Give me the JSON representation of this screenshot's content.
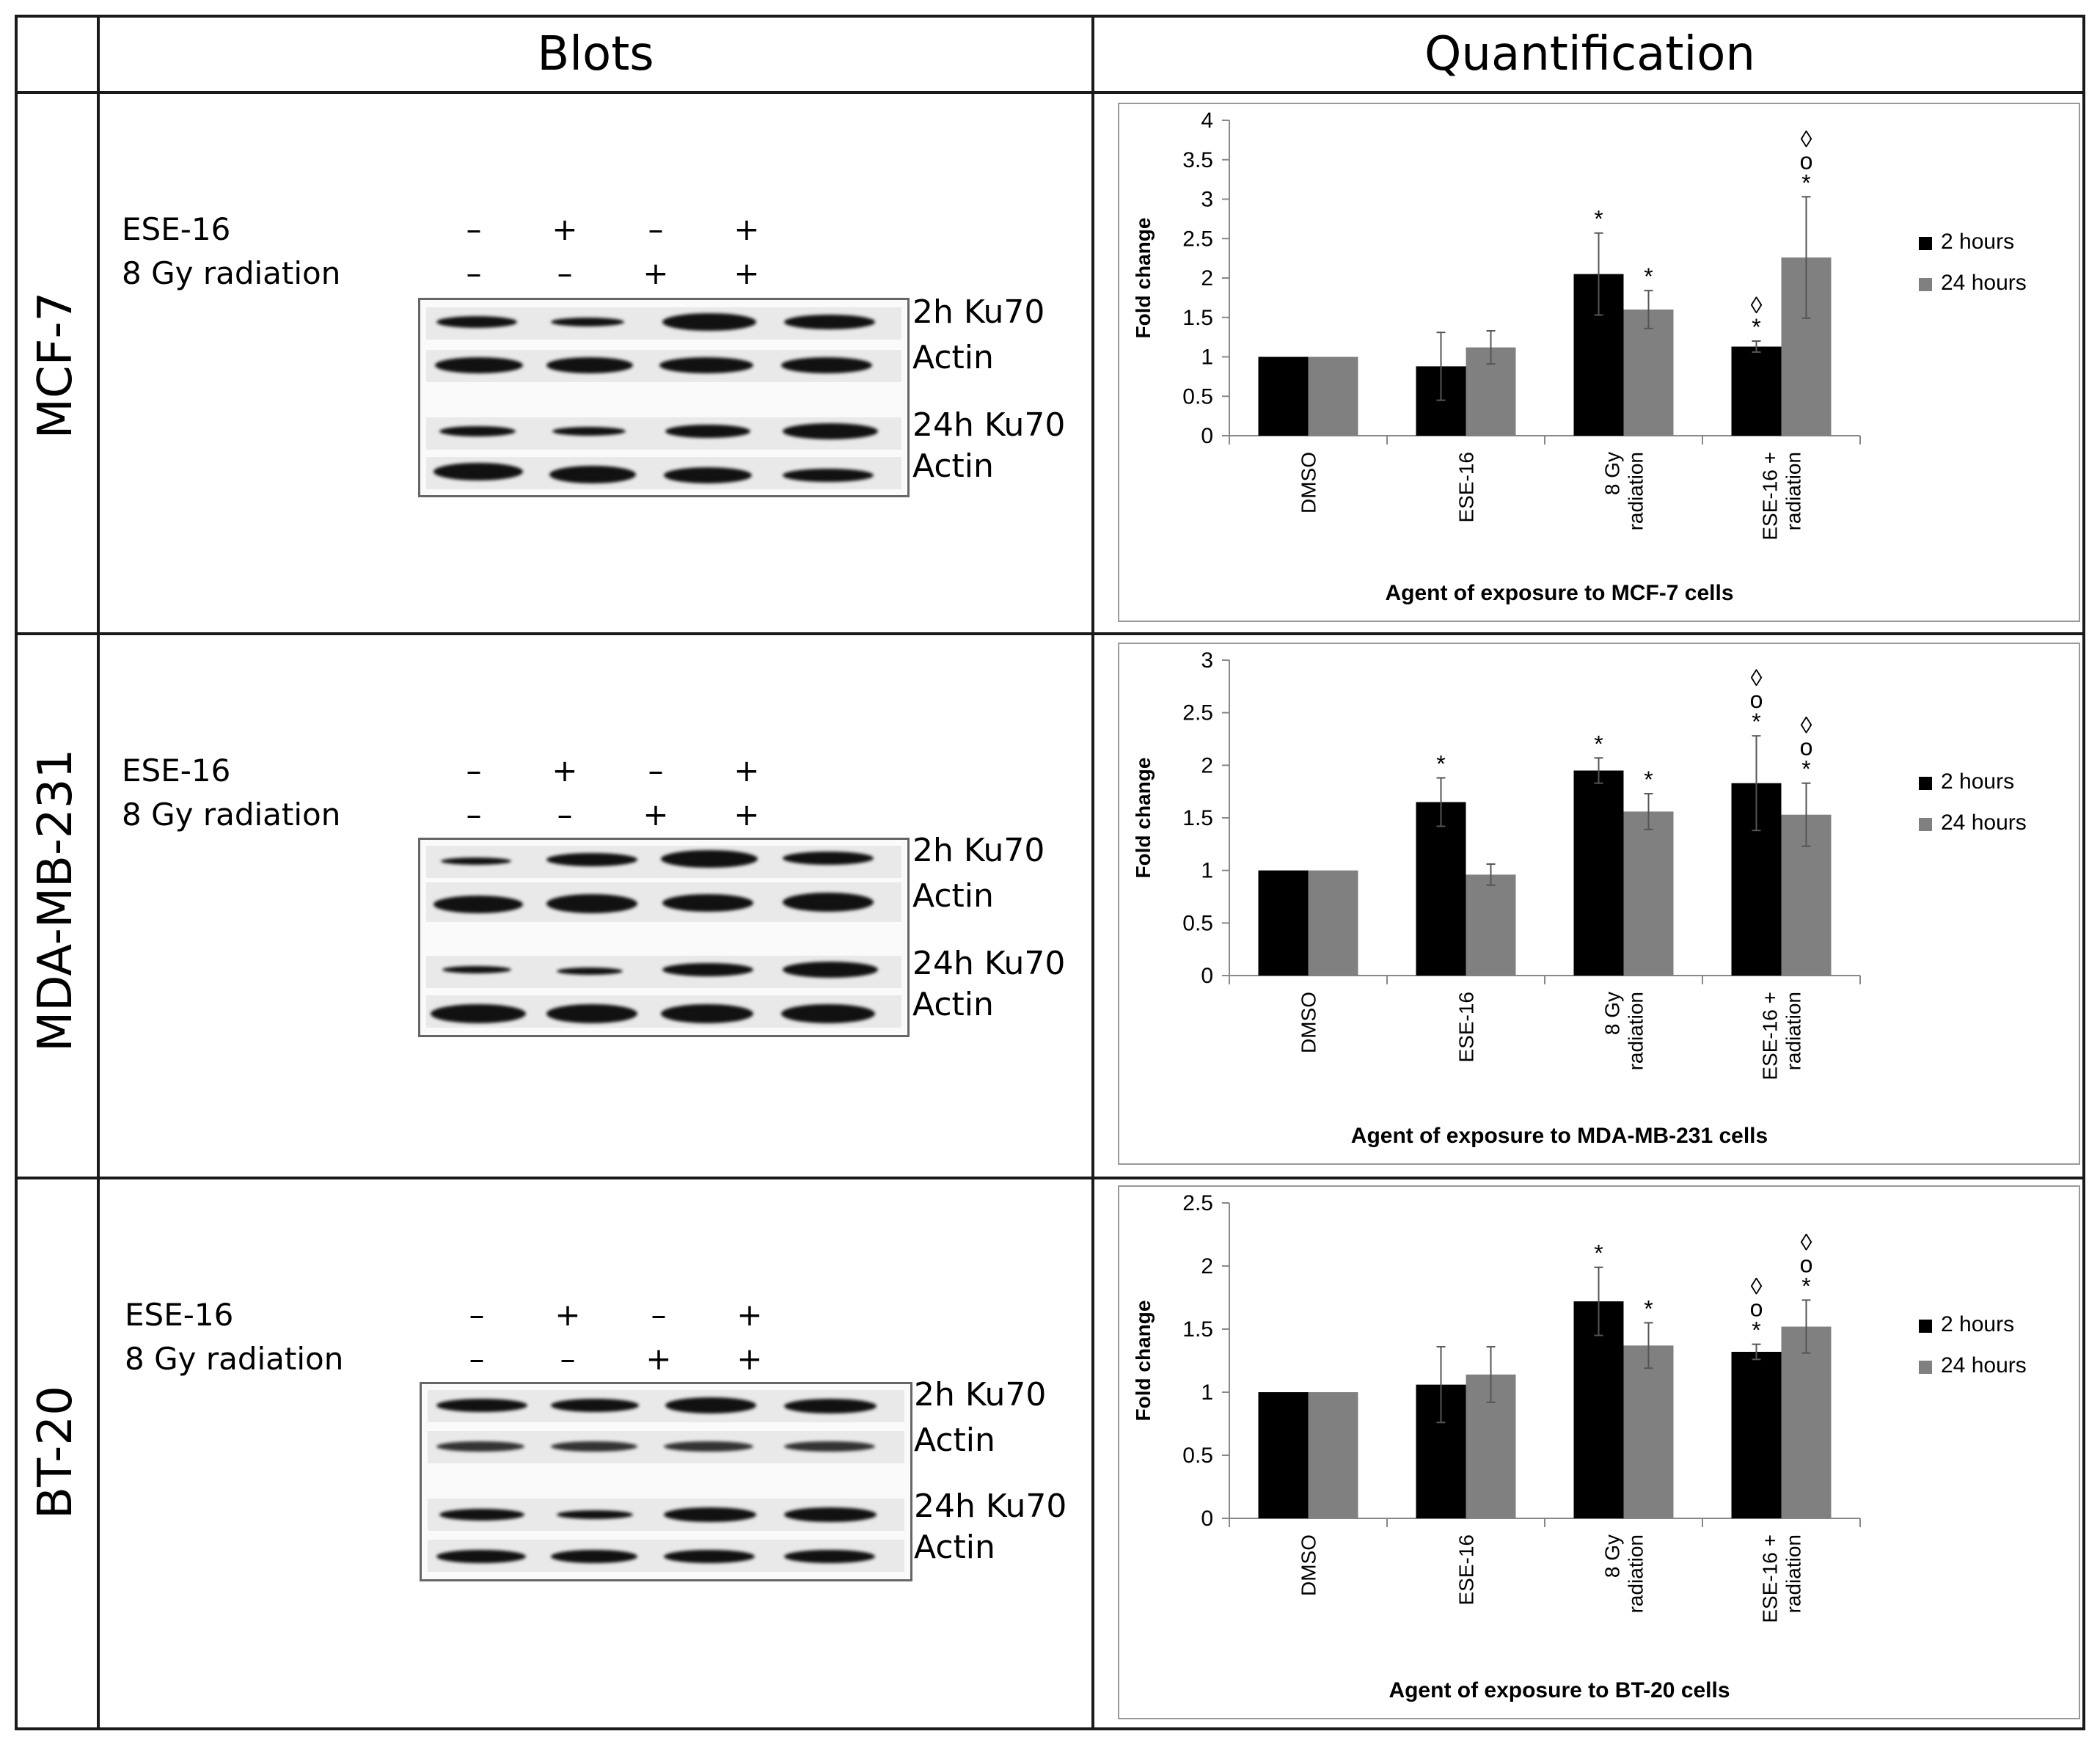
{
  "headers": {
    "blots": "Blots",
    "quantification": "Quantification"
  },
  "rows": [
    {
      "cell_line": "MCF-7",
      "blots": {
        "treatments": [
          {
            "label": "ESE-16",
            "signs": [
              "–",
              "+",
              "–",
              "+"
            ]
          },
          {
            "label": "8 Gy radiation",
            "signs": [
              "–",
              "–",
              "+",
              "+"
            ]
          }
        ],
        "band_labels": [
          "2h Ku70",
          "Actin",
          "24h Ku70",
          "Actin"
        ]
      }
    },
    {
      "cell_line": "MDA-MB-231",
      "blots": {
        "treatments": [
          {
            "label": "ESE-16",
            "signs": [
              "–",
              "+",
              "–",
              "+"
            ]
          },
          {
            "label": "8 Gy radiation",
            "signs": [
              "–",
              "–",
              "+",
              "+"
            ]
          }
        ],
        "band_labels": [
          "2h Ku70",
          "Actin",
          "24h Ku70",
          "Actin"
        ]
      }
    },
    {
      "cell_line": "BT-20",
      "blots": {
        "treatments": [
          {
            "label": "ESE-16",
            "signs": [
              "–",
              "+",
              "–",
              "+"
            ]
          },
          {
            "label": "8 Gy radiation",
            "signs": [
              "–",
              "–",
              "+",
              "+"
            ]
          }
        ],
        "band_labels": [
          "2h Ku70",
          "Actin",
          "24h Ku70",
          "Actin"
        ]
      }
    }
  ],
  "chart_data": [
    {
      "type": "bar",
      "title": "",
      "ylabel": "Fold change",
      "xlabel": "Agent of exposure to MCF-7 cells",
      "categories": [
        "DMSO",
        "ESE-16",
        "8 Gy radiation",
        "ESE-16 + radiation"
      ],
      "ylim": [
        0,
        4
      ],
      "yticks": [
        "0",
        "0.5",
        "1",
        "1.5",
        "2",
        "2.5",
        "3",
        "3.5",
        "4"
      ],
      "legend_position": "right",
      "series": [
        {
          "name": "2 hours",
          "color": "#000000",
          "values": [
            1.0,
            0.88,
            2.05,
            1.13
          ],
          "errors": [
            0.0,
            0.43,
            0.52,
            0.07
          ],
          "annotations": [
            "",
            "",
            "*",
            "*◊"
          ]
        },
        {
          "name": "24 hours",
          "color": "#808080",
          "values": [
            1.0,
            1.12,
            1.6,
            2.26
          ],
          "errors": [
            0.0,
            0.21,
            0.24,
            0.77
          ],
          "annotations": [
            "",
            "",
            "*",
            "*o◊"
          ]
        }
      ]
    },
    {
      "type": "bar",
      "title": "",
      "ylabel": "Fold change",
      "xlabel": "Agent of exposure to MDA-MB-231 cells",
      "categories": [
        "DMSO",
        "ESE-16",
        "8 Gy radiation",
        "ESE-16 + radiation"
      ],
      "ylim": [
        0,
        3
      ],
      "yticks": [
        "0",
        "0.5",
        "1",
        "1.5",
        "2",
        "2.5",
        "3"
      ],
      "legend_position": "right",
      "series": [
        {
          "name": "2 hours",
          "color": "#000000",
          "values": [
            1.0,
            1.65,
            1.95,
            1.83
          ],
          "errors": [
            0.0,
            0.23,
            0.12,
            0.45
          ],
          "annotations": [
            "",
            "*",
            "*",
            "*o◊"
          ]
        },
        {
          "name": "24 hours",
          "color": "#808080",
          "values": [
            1.0,
            0.96,
            1.56,
            1.53
          ],
          "errors": [
            0.0,
            0.1,
            0.17,
            0.3
          ],
          "annotations": [
            "",
            "",
            "*",
            "*o◊"
          ]
        }
      ]
    },
    {
      "type": "bar",
      "title": "",
      "ylabel": "Fold change",
      "xlabel": "Agent of exposure to BT-20 cells",
      "categories": [
        "DMSO",
        "ESE-16",
        "8 Gy radiation",
        "ESE-16 + radiation"
      ],
      "ylim": [
        0,
        2.5
      ],
      "yticks": [
        "0",
        "0.5",
        "1",
        "1.5",
        "2",
        "2.5"
      ],
      "legend_position": "right",
      "series": [
        {
          "name": "2 hours",
          "color": "#000000",
          "values": [
            1.0,
            1.06,
            1.72,
            1.32
          ],
          "errors": [
            0.0,
            0.3,
            0.27,
            0.06
          ],
          "annotations": [
            "",
            "",
            "*",
            "*o◊"
          ]
        },
        {
          "name": "24 hours",
          "color": "#808080",
          "values": [
            1.0,
            1.14,
            1.37,
            1.52
          ],
          "errors": [
            0.0,
            0.22,
            0.18,
            0.21
          ],
          "annotations": [
            "",
            "",
            "*",
            "*o◊"
          ]
        }
      ]
    }
  ]
}
